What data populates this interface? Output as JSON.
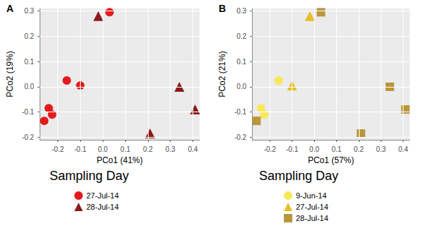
{
  "chart_data": [
    {
      "type": "scatter",
      "title": "A",
      "x_label": "PCo1 (41%)",
      "y_label": "PCo2 (19%)",
      "legend_title": "Sampling Day",
      "legend": "bottom",
      "grid": true,
      "xlim": [
        -0.28,
        0.43
      ],
      "ylim": [
        -0.21,
        0.31
      ],
      "xticks": [
        -0.2,
        -0.1,
        {
          "value": 0,
          "label": "0.0"
        },
        0.1,
        0.2,
        0.3,
        0.4
      ],
      "yticks": [
        -0.2,
        -0.1,
        {
          "value": 0,
          "label": "0.0"
        },
        0.1,
        0.2,
        0.3
      ],
      "series": [
        {
          "name": "27-Jul-14",
          "color": "#E41A1C",
          "marker": "circle",
          "x": [
            0.03,
            -0.16,
            -0.1,
            -0.24,
            -0.225,
            -0.26
          ],
          "values": [
            0.295,
            0.025,
            0.005,
            -0.085,
            -0.11,
            -0.135
          ]
        },
        {
          "name": "28-Jul-14",
          "color": "#8B1A1A",
          "marker": "triangle",
          "x": [
            -0.02,
            0.34,
            0.41,
            0.21
          ],
          "values": [
            0.28,
            0.0,
            -0.09,
            -0.185
          ]
        }
      ]
    },
    {
      "type": "scatter",
      "title": "B",
      "x_label": "PCo1 (57%)",
      "y_label": "PCo2 (21%)",
      "legend_title": "Sampling Day",
      "legend": "bottom",
      "grid": true,
      "xlim": [
        -0.28,
        0.43
      ],
      "ylim": [
        -0.21,
        0.31
      ],
      "xticks": [
        -0.2,
        -0.1,
        {
          "value": 0,
          "label": "0.0"
        },
        0.1,
        0.2,
        0.3,
        0.4
      ],
      "yticks": [
        -0.2,
        -0.1,
        {
          "value": 0,
          "label": "0.0"
        },
        0.1,
        0.2,
        0.3
      ],
      "series": [
        {
          "name": "9-Jun-14",
          "color": "#F7E85A",
          "marker": "circle",
          "x": [
            -0.16,
            -0.24,
            -0.225
          ],
          "values": [
            0.025,
            -0.085,
            -0.11
          ]
        },
        {
          "name": "27-Jul-14",
          "color": "#E8BE2A",
          "marker": "triangle",
          "x": [
            -0.02,
            -0.1
          ],
          "values": [
            0.28,
            0.005
          ]
        },
        {
          "name": "28-Jul-14",
          "color": "#B8963C",
          "marker": "square",
          "x": [
            0.03,
            0.34,
            0.41,
            0.21,
            -0.26
          ],
          "values": [
            0.295,
            0.0,
            -0.09,
            -0.185,
            -0.135
          ]
        }
      ]
    }
  ]
}
